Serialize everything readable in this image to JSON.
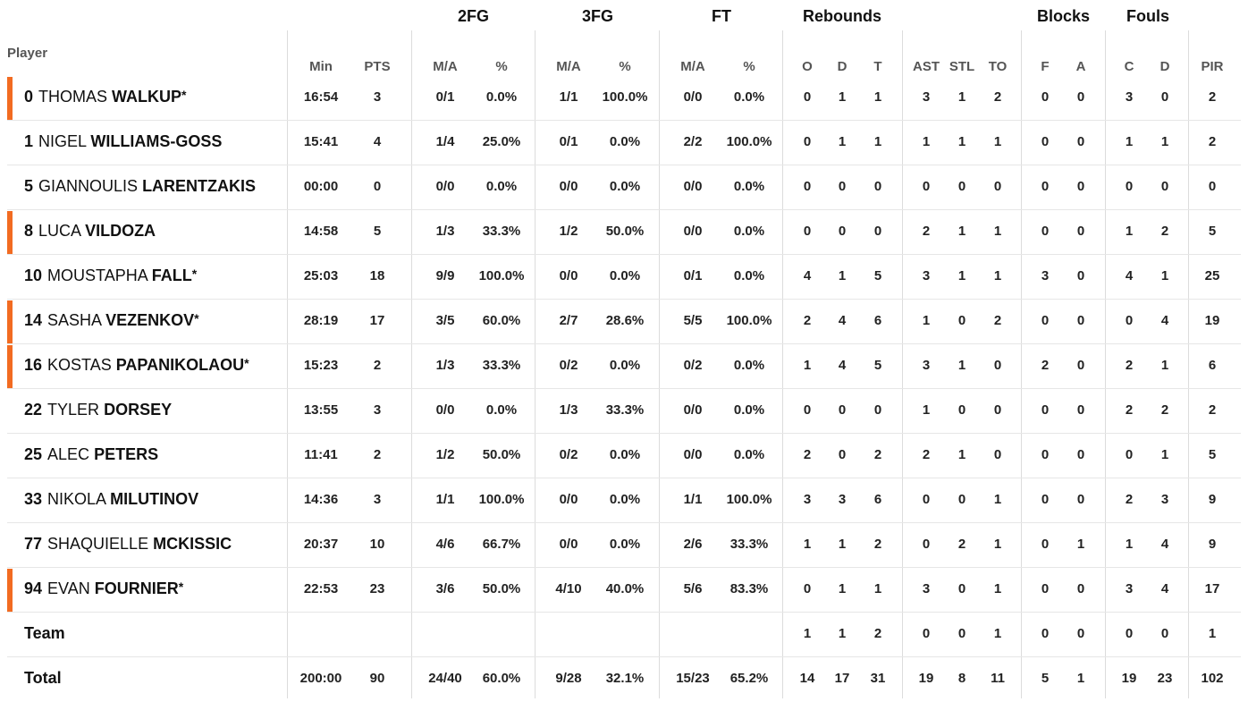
{
  "groups": {
    "fg2": "2FG",
    "fg3": "3FG",
    "ft": "FT",
    "rebounds": "Rebounds",
    "blocks": "Blocks",
    "fouls": "Fouls"
  },
  "player_header": "Player",
  "columns": [
    "Min",
    "PTS",
    "M/A",
    "%",
    "M/A",
    "%",
    "M/A",
    "%",
    "O",
    "D",
    "T",
    "AST",
    "STL",
    "TO",
    "F",
    "A",
    "C",
    "D",
    "PIR"
  ],
  "rows": [
    {
      "number": "0",
      "first": "THOMAS",
      "last": "WALKUP",
      "star": "*",
      "highlight": true,
      "stats": [
        "16:54",
        "3",
        "0/1",
        "0.0%",
        "1/1",
        "100.0%",
        "0/0",
        "0.0%",
        "0",
        "1",
        "1",
        "3",
        "1",
        "2",
        "0",
        "0",
        "3",
        "0",
        "2"
      ]
    },
    {
      "number": "1",
      "first": "NIGEL",
      "last": "WILLIAMS-GOSS",
      "star": "",
      "highlight": false,
      "stats": [
        "15:41",
        "4",
        "1/4",
        "25.0%",
        "0/1",
        "0.0%",
        "2/2",
        "100.0%",
        "0",
        "1",
        "1",
        "1",
        "1",
        "1",
        "0",
        "0",
        "1",
        "1",
        "2"
      ]
    },
    {
      "number": "5",
      "first": "GIANNOULIS",
      "last": "LARENTZAKIS",
      "star": "",
      "highlight": false,
      "stats": [
        "00:00",
        "0",
        "0/0",
        "0.0%",
        "0/0",
        "0.0%",
        "0/0",
        "0.0%",
        "0",
        "0",
        "0",
        "0",
        "0",
        "0",
        "0",
        "0",
        "0",
        "0",
        "0"
      ]
    },
    {
      "number": "8",
      "first": "LUCA",
      "last": "VILDOZA",
      "star": "",
      "highlight": true,
      "stats": [
        "14:58",
        "5",
        "1/3",
        "33.3%",
        "1/2",
        "50.0%",
        "0/0",
        "0.0%",
        "0",
        "0",
        "0",
        "2",
        "1",
        "1",
        "0",
        "0",
        "1",
        "2",
        "5"
      ]
    },
    {
      "number": "10",
      "first": "MOUSTAPHA",
      "last": "FALL",
      "star": "*",
      "highlight": false,
      "stats": [
        "25:03",
        "18",
        "9/9",
        "100.0%",
        "0/0",
        "0.0%",
        "0/1",
        "0.0%",
        "4",
        "1",
        "5",
        "3",
        "1",
        "1",
        "3",
        "0",
        "4",
        "1",
        "25"
      ]
    },
    {
      "number": "14",
      "first": "SASHA",
      "last": "VEZENKOV",
      "star": "*",
      "highlight": true,
      "stats": [
        "28:19",
        "17",
        "3/5",
        "60.0%",
        "2/7",
        "28.6%",
        "5/5",
        "100.0%",
        "2",
        "4",
        "6",
        "1",
        "0",
        "2",
        "0",
        "0",
        "0",
        "4",
        "19"
      ]
    },
    {
      "number": "16",
      "first": "KOSTAS",
      "last": "PAPANIKOLAOU",
      "star": "*",
      "highlight": true,
      "stats": [
        "15:23",
        "2",
        "1/3",
        "33.3%",
        "0/2",
        "0.0%",
        "0/2",
        "0.0%",
        "1",
        "4",
        "5",
        "3",
        "1",
        "0",
        "2",
        "0",
        "2",
        "1",
        "6"
      ]
    },
    {
      "number": "22",
      "first": "TYLER",
      "last": "DORSEY",
      "star": "",
      "highlight": false,
      "stats": [
        "13:55",
        "3",
        "0/0",
        "0.0%",
        "1/3",
        "33.3%",
        "0/0",
        "0.0%",
        "0",
        "0",
        "0",
        "1",
        "0",
        "0",
        "0",
        "0",
        "2",
        "2",
        "2"
      ]
    },
    {
      "number": "25",
      "first": "ALEC",
      "last": "PETERS",
      "star": "",
      "highlight": false,
      "stats": [
        "11:41",
        "2",
        "1/2",
        "50.0%",
        "0/2",
        "0.0%",
        "0/0",
        "0.0%",
        "2",
        "0",
        "2",
        "2",
        "1",
        "0",
        "0",
        "0",
        "0",
        "1",
        "5"
      ]
    },
    {
      "number": "33",
      "first": "NIKOLA",
      "last": "MILUTINOV",
      "star": "",
      "highlight": false,
      "stats": [
        "14:36",
        "3",
        "1/1",
        "100.0%",
        "0/0",
        "0.0%",
        "1/1",
        "100.0%",
        "3",
        "3",
        "6",
        "0",
        "0",
        "1",
        "0",
        "0",
        "2",
        "3",
        "9"
      ]
    },
    {
      "number": "77",
      "first": "SHAQUIELLE",
      "last": "MCKISSIC",
      "star": "",
      "highlight": false,
      "stats": [
        "20:37",
        "10",
        "4/6",
        "66.7%",
        "0/0",
        "0.0%",
        "2/6",
        "33.3%",
        "1",
        "1",
        "2",
        "0",
        "2",
        "1",
        "0",
        "1",
        "1",
        "4",
        "9"
      ]
    },
    {
      "number": "94",
      "first": "EVAN",
      "last": "FOURNIER",
      "star": "*",
      "highlight": true,
      "stats": [
        "22:53",
        "23",
        "3/6",
        "50.0%",
        "4/10",
        "40.0%",
        "5/6",
        "83.3%",
        "0",
        "1",
        "1",
        "3",
        "0",
        "1",
        "0",
        "0",
        "3",
        "4",
        "17"
      ]
    }
  ],
  "team_row": {
    "label": "Team",
    "stats": [
      "",
      "",
      "",
      "",
      "",
      "",
      "",
      "",
      "1",
      "1",
      "2",
      "0",
      "0",
      "1",
      "0",
      "0",
      "0",
      "0",
      "1"
    ]
  },
  "total_row": {
    "label": "Total",
    "stats": [
      "200:00",
      "90",
      "24/40",
      "60.0%",
      "9/28",
      "32.1%",
      "15/23",
      "65.2%",
      "14",
      "17",
      "31",
      "19",
      "8",
      "11",
      "5",
      "1",
      "19",
      "23",
      "102"
    ]
  },
  "colors": {
    "starter_bar": "#f26b21",
    "divider": "#dcdcdc",
    "header_text": "#555555"
  }
}
